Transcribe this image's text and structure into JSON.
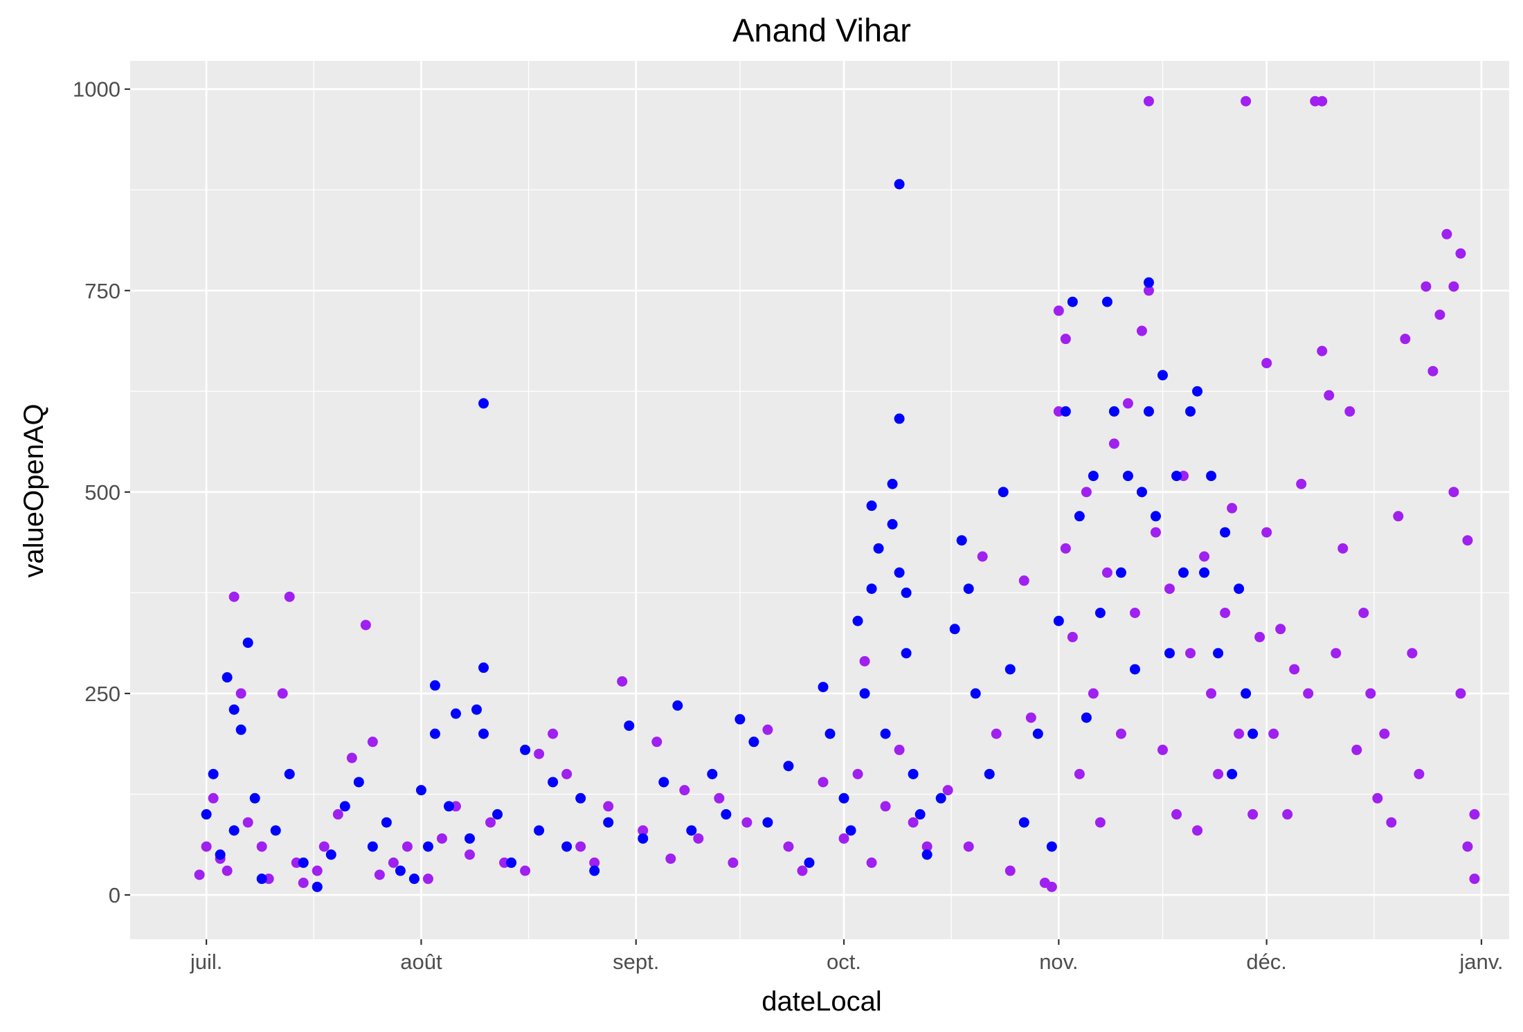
{
  "chart_data": {
    "type": "scatter",
    "title": "Anand Vihar",
    "xlabel": "dateLocal",
    "ylabel": "valueOpenAQ",
    "x_ticks": [
      {
        "date": "2017-07-01",
        "label": "juil."
      },
      {
        "date": "2017-08-01",
        "label": "août"
      },
      {
        "date": "2017-09-01",
        "label": "sept."
      },
      {
        "date": "2017-10-01",
        "label": "oct."
      },
      {
        "date": "2017-11-01",
        "label": "nov."
      },
      {
        "date": "2017-12-01",
        "label": "déc."
      },
      {
        "date": "2018-01-01",
        "label": "janv."
      }
    ],
    "xlim": [
      "2017-06-20",
      "2018-01-05"
    ],
    "y_ticks": [
      0,
      250,
      500,
      750,
      1000
    ],
    "ylim": [
      -55,
      1035
    ],
    "grid": true,
    "legend": "none",
    "colors": {
      "panel": "#ebebeb",
      "grid": "#ffffff",
      "series_purple": "#a020f0",
      "series_blue": "#0000ff"
    },
    "series": [
      {
        "color": "#a020f0",
        "points": [
          [
            "2017-06-30",
            25
          ],
          [
            "2017-07-01",
            60
          ],
          [
            "2017-07-02",
            120
          ],
          [
            "2017-07-03",
            45
          ],
          [
            "2017-07-04",
            30
          ],
          [
            "2017-07-05",
            370
          ],
          [
            "2017-07-06",
            250
          ],
          [
            "2017-07-07",
            90
          ],
          [
            "2017-07-09",
            60
          ],
          [
            "2017-07-10",
            20
          ],
          [
            "2017-07-12",
            250
          ],
          [
            "2017-07-13",
            370
          ],
          [
            "2017-07-14",
            40
          ],
          [
            "2017-07-15",
            15
          ],
          [
            "2017-07-17",
            30
          ],
          [
            "2017-07-18",
            60
          ],
          [
            "2017-07-20",
            100
          ],
          [
            "2017-07-22",
            170
          ],
          [
            "2017-07-24",
            335
          ],
          [
            "2017-07-25",
            190
          ],
          [
            "2017-07-26",
            25
          ],
          [
            "2017-07-28",
            40
          ],
          [
            "2017-07-30",
            60
          ],
          [
            "2017-08-02",
            20
          ],
          [
            "2017-08-04",
            70
          ],
          [
            "2017-08-06",
            110
          ],
          [
            "2017-08-08",
            50
          ],
          [
            "2017-08-11",
            90
          ],
          [
            "2017-08-13",
            40
          ],
          [
            "2017-08-16",
            30
          ],
          [
            "2017-08-18",
            175
          ],
          [
            "2017-08-20",
            200
          ],
          [
            "2017-08-22",
            150
          ],
          [
            "2017-08-24",
            60
          ],
          [
            "2017-08-26",
            40
          ],
          [
            "2017-08-28",
            110
          ],
          [
            "2017-08-30",
            265
          ],
          [
            "2017-09-02",
            80
          ],
          [
            "2017-09-04",
            190
          ],
          [
            "2017-09-06",
            45
          ],
          [
            "2017-09-08",
            130
          ],
          [
            "2017-09-10",
            70
          ],
          [
            "2017-09-13",
            120
          ],
          [
            "2017-09-15",
            40
          ],
          [
            "2017-09-17",
            90
          ],
          [
            "2017-09-20",
            205
          ],
          [
            "2017-09-23",
            60
          ],
          [
            "2017-09-25",
            30
          ],
          [
            "2017-09-28",
            140
          ],
          [
            "2017-10-01",
            70
          ],
          [
            "2017-10-03",
            150
          ],
          [
            "2017-10-04",
            290
          ],
          [
            "2017-10-05",
            40
          ],
          [
            "2017-10-07",
            110
          ],
          [
            "2017-10-09",
            180
          ],
          [
            "2017-10-11",
            90
          ],
          [
            "2017-10-13",
            60
          ],
          [
            "2017-10-16",
            130
          ],
          [
            "2017-10-19",
            60
          ],
          [
            "2017-10-21",
            420
          ],
          [
            "2017-10-23",
            200
          ],
          [
            "2017-10-25",
            30
          ],
          [
            "2017-10-27",
            390
          ],
          [
            "2017-10-28",
            220
          ],
          [
            "2017-10-30",
            15
          ],
          [
            "2017-10-31",
            10
          ],
          [
            "2017-11-01",
            725
          ],
          [
            "2017-11-01",
            600
          ],
          [
            "2017-11-02",
            690
          ],
          [
            "2017-11-02",
            430
          ],
          [
            "2017-11-03",
            320
          ],
          [
            "2017-11-04",
            150
          ],
          [
            "2017-11-05",
            500
          ],
          [
            "2017-11-06",
            250
          ],
          [
            "2017-11-07",
            90
          ],
          [
            "2017-11-08",
            400
          ],
          [
            "2017-11-09",
            560
          ],
          [
            "2017-11-10",
            200
          ],
          [
            "2017-11-11",
            610
          ],
          [
            "2017-11-12",
            350
          ],
          [
            "2017-11-13",
            700
          ],
          [
            "2017-11-14",
            985
          ],
          [
            "2017-11-14",
            750
          ],
          [
            "2017-11-15",
            450
          ],
          [
            "2017-11-16",
            180
          ],
          [
            "2017-11-17",
            380
          ],
          [
            "2017-11-18",
            100
          ],
          [
            "2017-11-19",
            520
          ],
          [
            "2017-11-20",
            300
          ],
          [
            "2017-11-21",
            80
          ],
          [
            "2017-11-22",
            420
          ],
          [
            "2017-11-23",
            250
          ],
          [
            "2017-11-24",
            150
          ],
          [
            "2017-11-25",
            350
          ],
          [
            "2017-11-26",
            480
          ],
          [
            "2017-11-27",
            200
          ],
          [
            "2017-11-28",
            985
          ],
          [
            "2017-11-29",
            100
          ],
          [
            "2017-11-30",
            320
          ],
          [
            "2017-12-01",
            660
          ],
          [
            "2017-12-01",
            450
          ],
          [
            "2017-12-02",
            200
          ],
          [
            "2017-12-03",
            330
          ],
          [
            "2017-12-04",
            100
          ],
          [
            "2017-12-05",
            280
          ],
          [
            "2017-12-06",
            510
          ],
          [
            "2017-12-07",
            250
          ],
          [
            "2017-12-08",
            985
          ],
          [
            "2017-12-09",
            985
          ],
          [
            "2017-12-09",
            675
          ],
          [
            "2017-12-10",
            620
          ],
          [
            "2017-12-11",
            300
          ],
          [
            "2017-12-12",
            430
          ],
          [
            "2017-12-13",
            600
          ],
          [
            "2017-12-14",
            180
          ],
          [
            "2017-12-15",
            350
          ],
          [
            "2017-12-16",
            250
          ],
          [
            "2017-12-17",
            120
          ],
          [
            "2017-12-18",
            200
          ],
          [
            "2017-12-19",
            90
          ],
          [
            "2017-12-20",
            470
          ],
          [
            "2017-12-21",
            690
          ],
          [
            "2017-12-22",
            300
          ],
          [
            "2017-12-23",
            150
          ],
          [
            "2017-12-24",
            755
          ],
          [
            "2017-12-25",
            650
          ],
          [
            "2017-12-26",
            720
          ],
          [
            "2017-12-27",
            820
          ],
          [
            "2017-12-28",
            755
          ],
          [
            "2017-12-28",
            500
          ],
          [
            "2017-12-29",
            250
          ],
          [
            "2017-12-30",
            440
          ],
          [
            "2017-12-31",
            100
          ],
          [
            "2017-12-31",
            20
          ],
          [
            "2017-12-30",
            60
          ],
          [
            "2017-12-29",
            796
          ]
        ]
      },
      {
        "color": "#0000ff",
        "points": [
          [
            "2017-07-01",
            100
          ],
          [
            "2017-07-02",
            150
          ],
          [
            "2017-07-03",
            50
          ],
          [
            "2017-07-04",
            270
          ],
          [
            "2017-07-05",
            230
          ],
          [
            "2017-07-05",
            80
          ],
          [
            "2017-07-06",
            205
          ],
          [
            "2017-07-07",
            313
          ],
          [
            "2017-07-08",
            120
          ],
          [
            "2017-07-09",
            20
          ],
          [
            "2017-07-11",
            80
          ],
          [
            "2017-07-13",
            150
          ],
          [
            "2017-07-15",
            40
          ],
          [
            "2017-07-17",
            10
          ],
          [
            "2017-07-19",
            50
          ],
          [
            "2017-07-21",
            110
          ],
          [
            "2017-07-23",
            140
          ],
          [
            "2017-07-25",
            60
          ],
          [
            "2017-07-27",
            90
          ],
          [
            "2017-07-29",
            30
          ],
          [
            "2017-07-31",
            20
          ],
          [
            "2017-08-01",
            130
          ],
          [
            "2017-08-02",
            60
          ],
          [
            "2017-08-03",
            200
          ],
          [
            "2017-08-03",
            260
          ],
          [
            "2017-08-05",
            110
          ],
          [
            "2017-08-06",
            225
          ],
          [
            "2017-08-08",
            70
          ],
          [
            "2017-08-09",
            230
          ],
          [
            "2017-08-10",
            610
          ],
          [
            "2017-08-10",
            282
          ],
          [
            "2017-08-10",
            200
          ],
          [
            "2017-08-12",
            100
          ],
          [
            "2017-08-14",
            40
          ],
          [
            "2017-08-16",
            180
          ],
          [
            "2017-08-18",
            80
          ],
          [
            "2017-08-20",
            140
          ],
          [
            "2017-08-22",
            60
          ],
          [
            "2017-08-24",
            120
          ],
          [
            "2017-08-26",
            30
          ],
          [
            "2017-08-28",
            90
          ],
          [
            "2017-08-31",
            210
          ],
          [
            "2017-09-02",
            70
          ],
          [
            "2017-09-05",
            140
          ],
          [
            "2017-09-07",
            235
          ],
          [
            "2017-09-09",
            80
          ],
          [
            "2017-09-12",
            150
          ],
          [
            "2017-09-14",
            100
          ],
          [
            "2017-09-16",
            218
          ],
          [
            "2017-09-18",
            190
          ],
          [
            "2017-09-20",
            90
          ],
          [
            "2017-09-23",
            160
          ],
          [
            "2017-09-26",
            40
          ],
          [
            "2017-09-28",
            258
          ],
          [
            "2017-09-29",
            200
          ],
          [
            "2017-10-01",
            120
          ],
          [
            "2017-10-02",
            80
          ],
          [
            "2017-10-03",
            340
          ],
          [
            "2017-10-04",
            250
          ],
          [
            "2017-10-05",
            483
          ],
          [
            "2017-10-05",
            380
          ],
          [
            "2017-10-06",
            430
          ],
          [
            "2017-10-07",
            200
          ],
          [
            "2017-10-08",
            510
          ],
          [
            "2017-10-08",
            460
          ],
          [
            "2017-10-09",
            882
          ],
          [
            "2017-10-09",
            591
          ],
          [
            "2017-10-09",
            400
          ],
          [
            "2017-10-10",
            300
          ],
          [
            "2017-10-10",
            375
          ],
          [
            "2017-10-11",
            150
          ],
          [
            "2017-10-12",
            100
          ],
          [
            "2017-10-13",
            50
          ],
          [
            "2017-10-15",
            120
          ],
          [
            "2017-10-17",
            330
          ],
          [
            "2017-10-18",
            440
          ],
          [
            "2017-10-19",
            380
          ],
          [
            "2017-10-20",
            250
          ],
          [
            "2017-10-22",
            150
          ],
          [
            "2017-10-24",
            500
          ],
          [
            "2017-10-25",
            280
          ],
          [
            "2017-10-27",
            90
          ],
          [
            "2017-10-29",
            200
          ],
          [
            "2017-10-31",
            60
          ],
          [
            "2017-11-01",
            340
          ],
          [
            "2017-11-02",
            600
          ],
          [
            "2017-11-03",
            736
          ],
          [
            "2017-11-04",
            470
          ],
          [
            "2017-11-05",
            220
          ],
          [
            "2017-11-06",
            520
          ],
          [
            "2017-11-07",
            350
          ],
          [
            "2017-11-08",
            736
          ],
          [
            "2017-11-09",
            600
          ],
          [
            "2017-11-10",
            400
          ],
          [
            "2017-11-11",
            520
          ],
          [
            "2017-11-12",
            280
          ],
          [
            "2017-11-13",
            500
          ],
          [
            "2017-11-14",
            760
          ],
          [
            "2017-11-14",
            600
          ],
          [
            "2017-11-15",
            470
          ],
          [
            "2017-11-16",
            645
          ],
          [
            "2017-11-17",
            300
          ],
          [
            "2017-11-18",
            520
          ],
          [
            "2017-11-19",
            400
          ],
          [
            "2017-11-20",
            600
          ],
          [
            "2017-11-21",
            625
          ],
          [
            "2017-11-22",
            400
          ],
          [
            "2017-11-23",
            520
          ],
          [
            "2017-11-24",
            300
          ],
          [
            "2017-11-25",
            450
          ],
          [
            "2017-11-26",
            150
          ],
          [
            "2017-11-27",
            380
          ],
          [
            "2017-11-28",
            250
          ],
          [
            "2017-11-29",
            200
          ]
        ]
      }
    ]
  }
}
